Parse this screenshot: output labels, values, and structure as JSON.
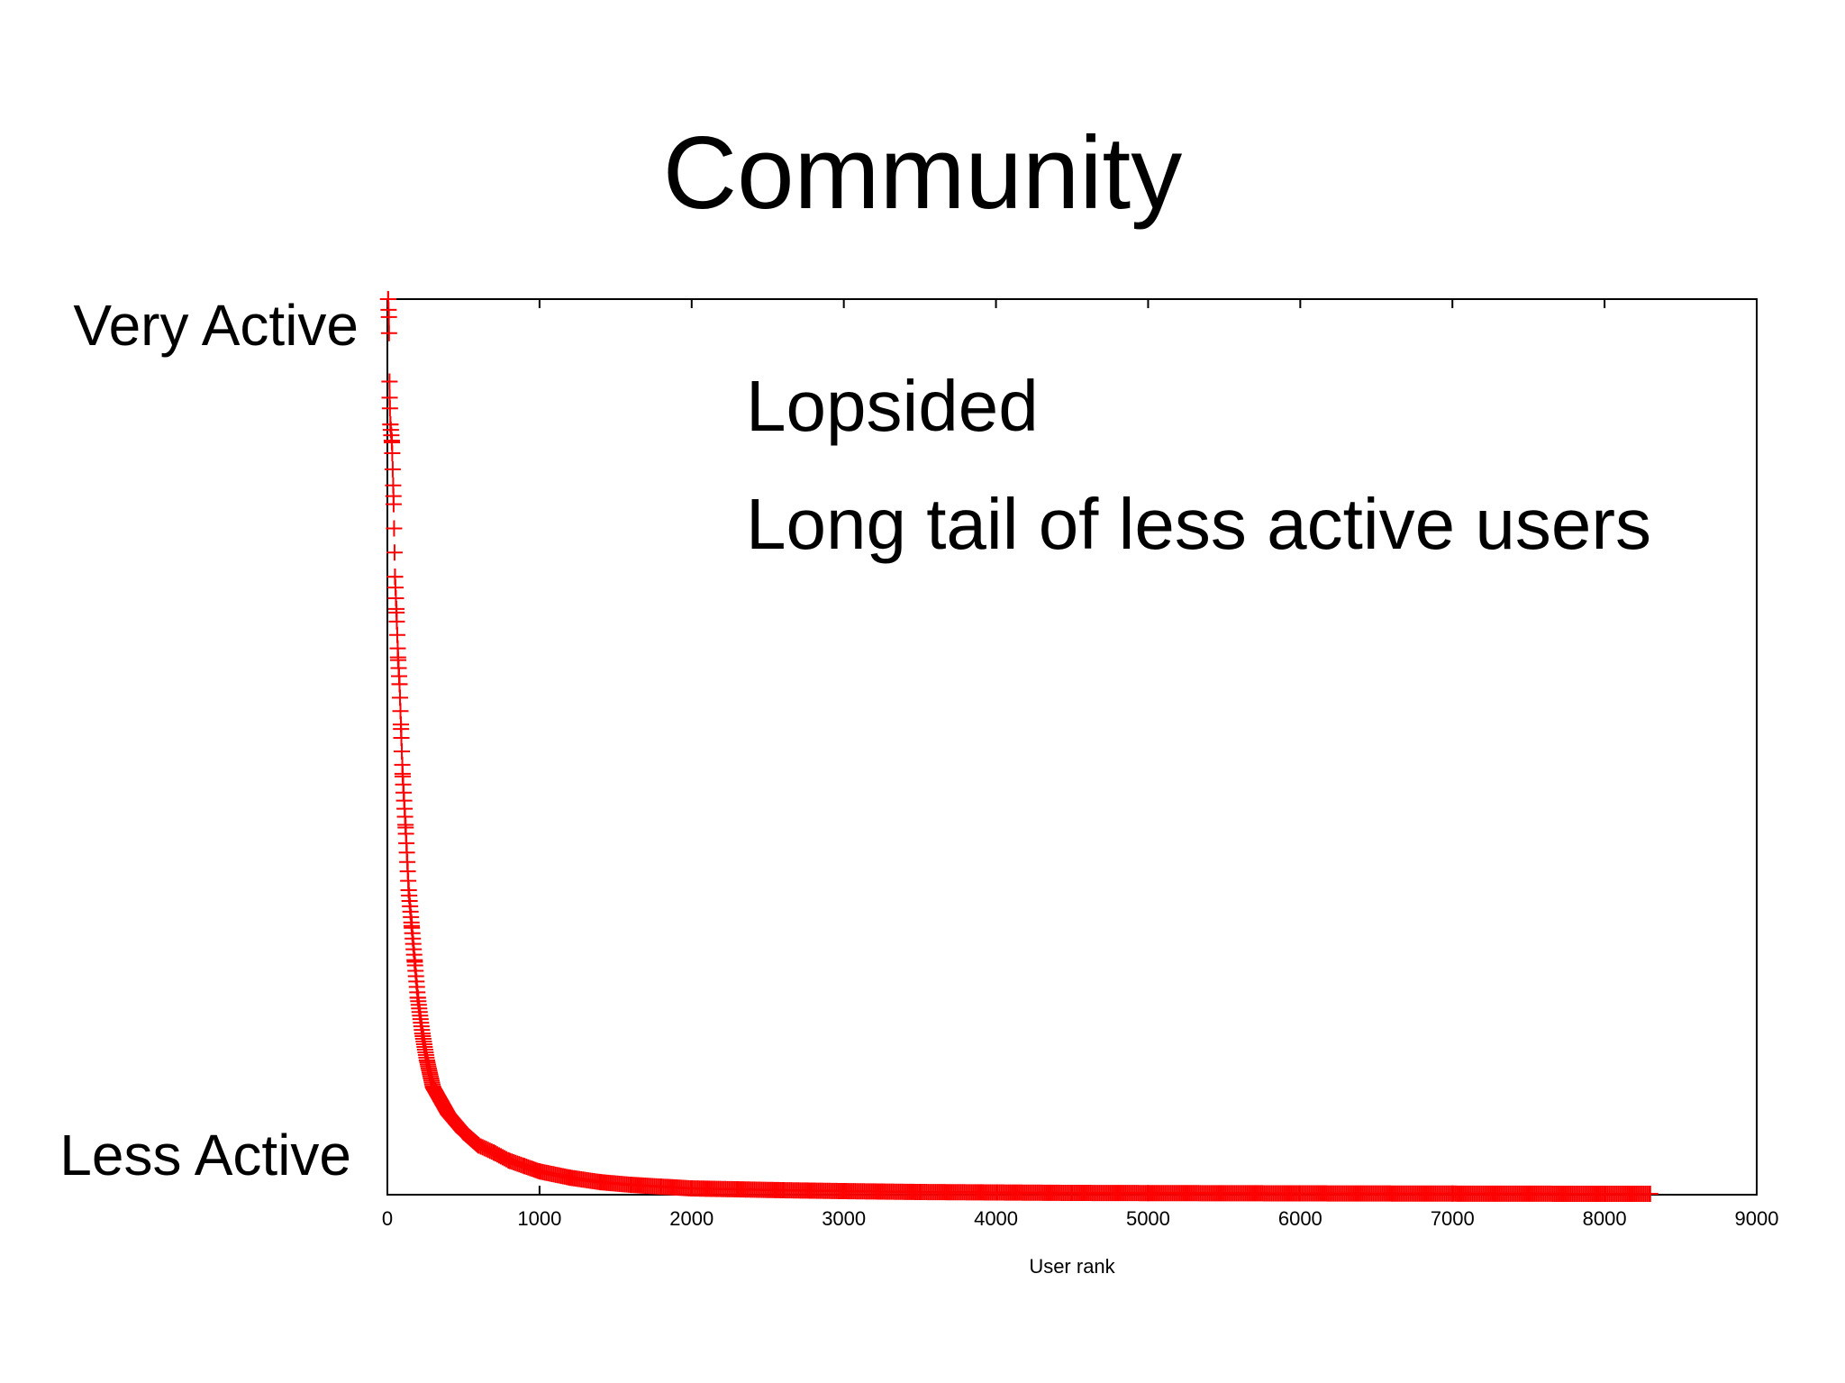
{
  "slide": {
    "title": "Community",
    "annotations": [
      "Lopsided",
      "Long tail of less active users"
    ]
  },
  "chart_data": {
    "type": "scatter",
    "title": "",
    "xlabel": "User rank",
    "ylabel": "",
    "y_end_labels": {
      "top": "Very Active",
      "bottom": "Less Active"
    },
    "xlim": [
      0,
      9000
    ],
    "ylim": [
      0,
      1
    ],
    "x_ticks": [
      0,
      1000,
      2000,
      3000,
      4000,
      5000,
      6000,
      7000,
      8000,
      9000
    ],
    "x_tick_labels": [
      "0",
      "1000",
      "2000",
      "3000",
      "4000",
      "5000",
      "6000",
      "7000",
      "8000",
      "9000"
    ],
    "y_tick_labels": [],
    "grid": false,
    "marker": "+",
    "color": "#ff0000",
    "series": [
      {
        "x": [
          5,
          10,
          15,
          20,
          30,
          40,
          50,
          60,
          70,
          80,
          90,
          100,
          120,
          140,
          160,
          180,
          200,
          230,
          260,
          300,
          350,
          400,
          450,
          500,
          600,
          700,
          800,
          900,
          1000,
          1200,
          1400,
          1600,
          1800,
          2000,
          2300,
          2600,
          3000,
          3500,
          4000,
          4500,
          5000,
          6000,
          7000,
          8000,
          8300
        ],
        "y": [
          1.0,
          0.98,
          0.89,
          0.86,
          0.84,
          0.78,
          0.69,
          0.65,
          0.6,
          0.57,
          0.52,
          0.47,
          0.41,
          0.34,
          0.3,
          0.26,
          0.22,
          0.18,
          0.15,
          0.12,
          0.105,
          0.09,
          0.08,
          0.07,
          0.055,
          0.047,
          0.038,
          0.032,
          0.026,
          0.019,
          0.014,
          0.011,
          0.009,
          0.007,
          0.006,
          0.005,
          0.004,
          0.003,
          0.0025,
          0.002,
          0.0018,
          0.0015,
          0.0012,
          0.001,
          0.001
        ]
      }
    ]
  }
}
